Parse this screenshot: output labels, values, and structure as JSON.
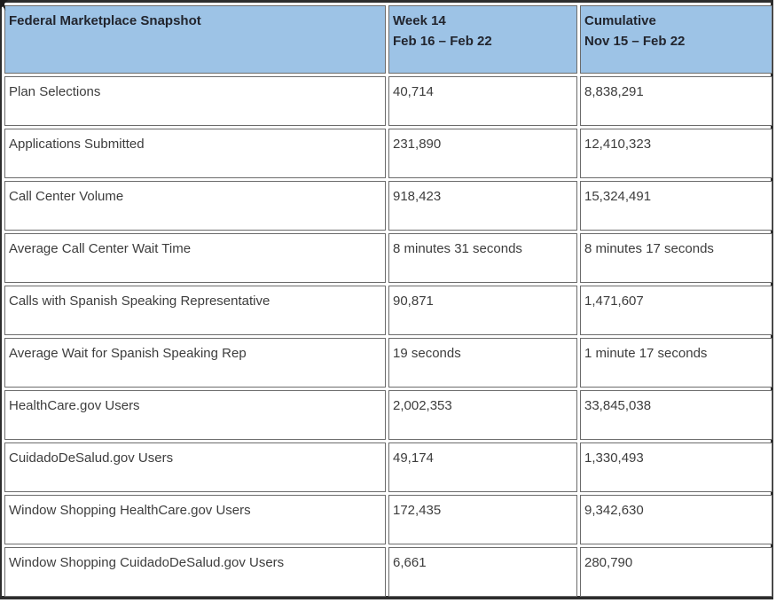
{
  "table": {
    "title": "Federal Marketplace Snapshot",
    "columns": {
      "metric_header": "Federal Marketplace Snapshot",
      "week_header_line1": "Week 14",
      "week_header_line2": "Feb 16 – Feb 22",
      "cumulative_header_line1": "Cumulative",
      "cumulative_header_line2": "Nov 15 – Feb 22"
    },
    "rows": [
      {
        "label": "Plan Selections",
        "week": "40,714",
        "cumulative": "8,838,291"
      },
      {
        "label": "Applications Submitted",
        "week": "231,890",
        "cumulative": "12,410,323"
      },
      {
        "label": "Call Center Volume",
        "week": "918,423",
        "cumulative": "15,324,491"
      },
      {
        "label": "Average Call Center Wait Time",
        "week": "8 minutes 31 seconds",
        "cumulative": "8 minutes 17 seconds"
      },
      {
        "label": "Calls with Spanish Speaking Representative",
        "week": "90,871",
        "cumulative": "1,471,607"
      },
      {
        "label": "Average Wait for Spanish Speaking Rep",
        "week": "19 seconds",
        "cumulative": "1 minute 17 seconds"
      },
      {
        "label": "HealthCare.gov Users",
        "week": "2,002,353",
        "cumulative": "33,845,038"
      },
      {
        "label": "CuidadoDeSalud.gov Users",
        "week": "49,174",
        "cumulative": "1,330,493"
      },
      {
        "label": "Window Shopping HealthCare.gov Users",
        "week": "172,435",
        "cumulative": "9,342,630"
      },
      {
        "label": "Window Shopping CuidadoDeSalud.gov Users",
        "week": "6,661",
        "cumulative": "280,790"
      }
    ]
  },
  "colors": {
    "header_bg": "#9DC3E6",
    "header_text": "#22252e",
    "body_text": "#3d3d3d",
    "cell_border": "#6b6b6b",
    "frame": "#2d2d2d"
  }
}
